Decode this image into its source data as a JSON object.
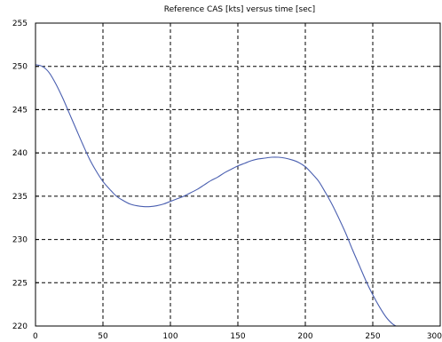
{
  "colors": {
    "series": "#4a5fb0",
    "axis": "#000000",
    "background": "#ffffff"
  },
  "chart_data": {
    "type": "line",
    "title": "Reference CAS [kts] versus time [sec]",
    "xlabel": "",
    "ylabel": "",
    "xlim": [
      0,
      300
    ],
    "ylim": [
      220,
      255
    ],
    "xticks": [
      0,
      50,
      100,
      150,
      200,
      250,
      300
    ],
    "yticks": [
      220,
      225,
      230,
      235,
      240,
      245,
      250,
      255
    ],
    "xtick_labels": [
      "0",
      "50",
      "100",
      "150",
      "200",
      "250",
      "300"
    ],
    "ytick_labels": [
      "220",
      "225",
      "230",
      "235",
      "240",
      "245",
      "250",
      "255"
    ],
    "grid": true,
    "series": [
      {
        "color": "#4a5fb0",
        "x": [
          0,
          5,
          10,
          15,
          20,
          25,
          30,
          35,
          40,
          45,
          50,
          55,
          60,
          65,
          70,
          75,
          80,
          85,
          90,
          95,
          100,
          105,
          110,
          115,
          120,
          125,
          130,
          135,
          140,
          145,
          150,
          155,
          160,
          165,
          170,
          175,
          180,
          185,
          190,
          195,
          200,
          205,
          210,
          215,
          220,
          225,
          230,
          235,
          240,
          245,
          250,
          255,
          260,
          265,
          270
        ],
        "y": [
          250.2,
          250.0,
          249.3,
          248.0,
          246.4,
          244.6,
          242.8,
          241.0,
          239.3,
          237.9,
          236.7,
          235.8,
          235.0,
          234.5,
          234.1,
          233.9,
          233.8,
          233.8,
          233.9,
          234.1,
          234.4,
          234.7,
          235.0,
          235.4,
          235.8,
          236.3,
          236.8,
          237.2,
          237.7,
          238.1,
          238.5,
          238.8,
          239.1,
          239.3,
          239.4,
          239.5,
          239.5,
          239.4,
          239.2,
          238.9,
          238.4,
          237.6,
          236.7,
          235.4,
          234.0,
          232.4,
          230.7,
          228.8,
          227.0,
          225.2,
          223.6,
          222.2,
          221.0,
          220.2,
          219.8
        ]
      }
    ]
  }
}
